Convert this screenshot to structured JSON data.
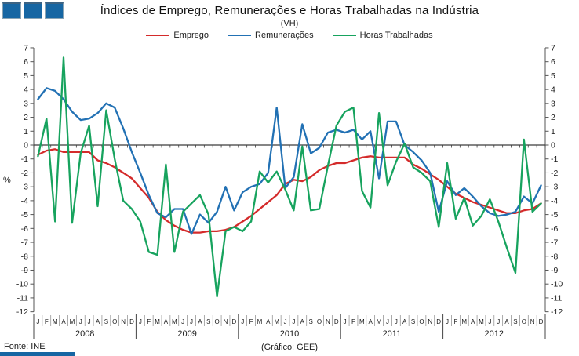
{
  "header": {
    "title": "Índices de Emprego, Remunerações e Horas Trabalhadas na Indústria",
    "subtitle": "(VH)"
  },
  "footer": {
    "source": "Fonte: INE",
    "credit": "(Gráfico: GEE)"
  },
  "chart_data": {
    "type": "line",
    "title": "Índices de Emprego, Remunerações e Horas Trabalhadas na Indústria (VH)",
    "ylabel": "%",
    "ylim": [
      -12,
      7
    ],
    "ytick_step": 1,
    "grid": "off",
    "legend_position": "top",
    "years": [
      "2008",
      "2009",
      "2010",
      "2011",
      "2012"
    ],
    "month_letters": [
      "J",
      "F",
      "M",
      "A",
      "M",
      "J",
      "J",
      "A",
      "S",
      "O",
      "N",
      "D"
    ],
    "series": [
      {
        "name": "Emprego",
        "color": "#d42b2b",
        "values": [
          -0.7,
          -0.4,
          -0.3,
          -0.5,
          -0.5,
          -0.5,
          -0.5,
          -1.1,
          -1.3,
          -1.6,
          -2.0,
          -2.4,
          -3.1,
          -3.8,
          -4.8,
          -5.4,
          -5.8,
          -6.1,
          -6.3,
          -6.3,
          -6.2,
          -6.2,
          -6.1,
          -5.9,
          -5.5,
          -5.1,
          -4.6,
          -4.1,
          -3.6,
          -2.8,
          -2.5,
          -2.6,
          -2.3,
          -1.8,
          -1.5,
          -1.3,
          -1.3,
          -1.1,
          -0.9,
          -0.8,
          -0.9,
          -0.9,
          -0.9,
          -0.9,
          -1.4,
          -1.7,
          -2.1,
          -2.5,
          -3.0,
          -3.5,
          -3.8,
          -4.1,
          -4.3,
          -4.5,
          -4.7,
          -4.9,
          -4.9,
          -4.7,
          -4.6,
          -4.2
        ]
      },
      {
        "name": "Remunerações",
        "color": "#2271b4",
        "values": [
          3.3,
          4.1,
          3.9,
          3.3,
          2.4,
          1.8,
          1.9,
          2.3,
          3.0,
          2.7,
          1.2,
          -0.5,
          -2.0,
          -3.6,
          -4.9,
          -5.2,
          -4.6,
          -4.6,
          -6.4,
          -5.0,
          -5.6,
          -4.8,
          -3.0,
          -4.7,
          -3.4,
          -3.0,
          -2.8,
          -2.0,
          2.7,
          -3.1,
          -2.3,
          1.5,
          -0.6,
          -0.2,
          0.9,
          1.1,
          0.9,
          1.1,
          0.4,
          1.0,
          -2.4,
          1.7,
          1.7,
          0.0,
          -0.5,
          -1.1,
          -2.0,
          -4.8,
          -2.6,
          -3.6,
          -3.1,
          -3.7,
          -4.4,
          -4.9,
          -5.1,
          -5.0,
          -4.8,
          -3.7,
          -4.2,
          -2.9
        ]
      },
      {
        "name": "Horas Trabalhadas",
        "color": "#17a35e",
        "values": [
          -0.8,
          1.9,
          -5.5,
          6.3,
          -5.6,
          -0.6,
          1.4,
          -4.4,
          2.5,
          -1.0,
          -4.0,
          -4.6,
          -5.5,
          -7.7,
          -7.9,
          -1.4,
          -7.7,
          -4.8,
          -4.2,
          -3.6,
          -5.0,
          -10.9,
          -6.2,
          -5.9,
          -6.2,
          -5.5,
          -1.9,
          -2.7,
          -1.9,
          -3.2,
          -4.7,
          -0.1,
          -4.7,
          -4.6,
          -1.5,
          1.4,
          2.4,
          2.7,
          -3.3,
          -4.5,
          2.3,
          -2.9,
          -1.2,
          0.1,
          -1.6,
          -2.0,
          -2.6,
          -5.9,
          -1.3,
          -5.3,
          -3.8,
          -5.8,
          -5.1,
          -3.9,
          -5.5,
          -7.4,
          -9.2,
          0.4,
          -4.8,
          -4.2
        ]
      }
    ]
  }
}
